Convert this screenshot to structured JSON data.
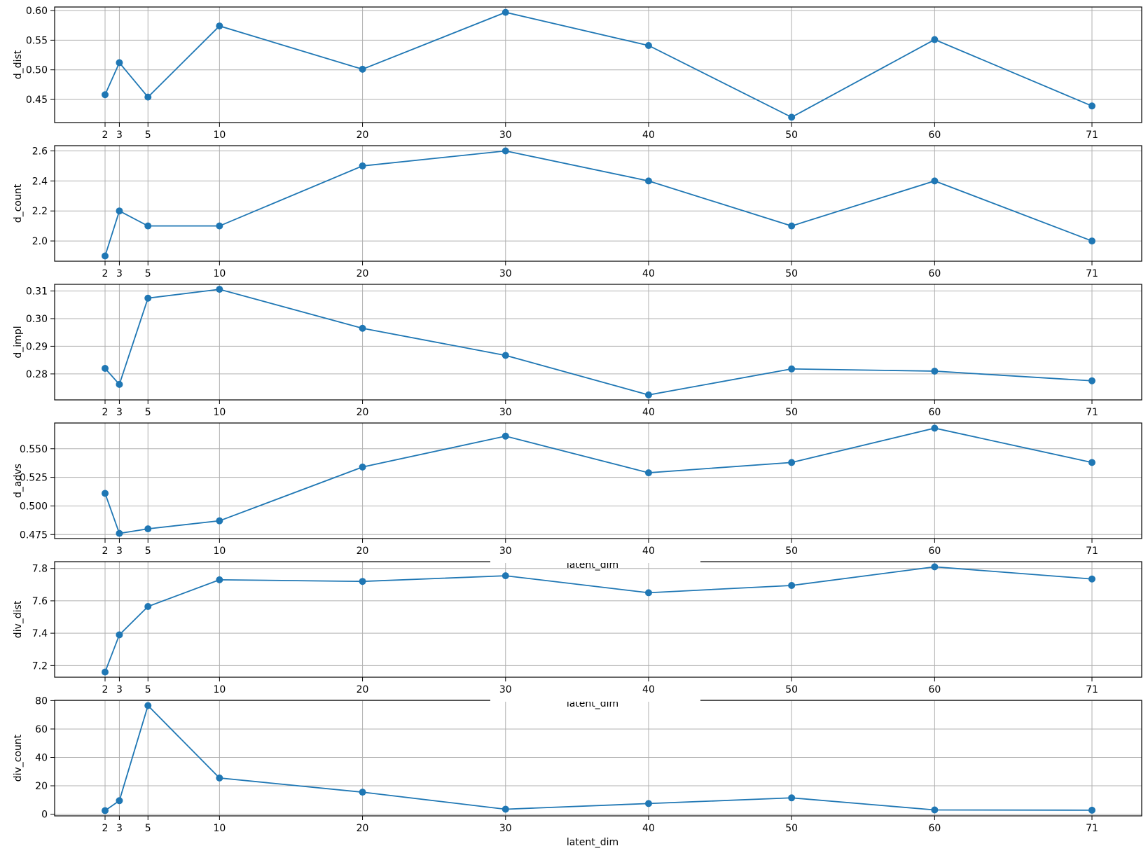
{
  "colors": {
    "series": "#1f77b4",
    "grid": "#b0b0b0"
  },
  "chart_data": [
    {
      "type": "line",
      "ylabel": "d_dist",
      "xlabel": "",
      "x": [
        2,
        3,
        5,
        10,
        20,
        30,
        40,
        50,
        60,
        71
      ],
      "values": [
        0.458,
        0.512,
        0.454,
        0.574,
        0.501,
        0.597,
        0.541,
        0.42,
        0.551,
        0.439
      ],
      "xticks": [
        2,
        3,
        5,
        10,
        20,
        30,
        40,
        50,
        60,
        71
      ],
      "yticks": [
        "0.45",
        "0.50",
        "0.55",
        "0.60"
      ],
      "ylim": [
        0.411,
        0.606
      ],
      "grid": true
    },
    {
      "type": "line",
      "ylabel": "d_count",
      "xlabel": "",
      "x": [
        2,
        3,
        5,
        10,
        20,
        30,
        40,
        50,
        60,
        71
      ],
      "values": [
        1.9,
        2.2,
        2.1,
        2.1,
        2.5,
        2.6,
        2.4,
        2.1,
        2.4,
        2.0
      ],
      "xticks": [
        2,
        3,
        5,
        10,
        20,
        30,
        40,
        50,
        60,
        71
      ],
      "yticks": [
        "2.0",
        "2.2",
        "2.4",
        "2.6"
      ],
      "ylim": [
        1.865,
        2.635
      ],
      "grid": true
    },
    {
      "type": "line",
      "ylabel": "d_impl",
      "xlabel": "",
      "x": [
        2,
        3,
        5,
        10,
        20,
        30,
        40,
        50,
        60,
        71
      ],
      "values": [
        0.282,
        0.2762,
        0.3074,
        0.3106,
        0.2965,
        0.2867,
        0.2724,
        0.2818,
        0.281,
        0.2775
      ],
      "xticks": [
        2,
        3,
        5,
        10,
        20,
        30,
        40,
        50,
        60,
        71
      ],
      "yticks": [
        "0.280",
        "0.290",
        "0.300",
        "0.310"
      ],
      "ytick_values": [
        0.28,
        0.29,
        0.3,
        0.31
      ],
      "ytick_text": [
        "0.28",
        "0.29",
        "0.30",
        "0.31"
      ],
      "ylim": [
        0.2706,
        0.3124
      ],
      "grid": true
    },
    {
      "type": "line",
      "ylabel": "d_advs",
      "xlabel": "latent_dim",
      "x": [
        2,
        3,
        5,
        10,
        20,
        30,
        40,
        50,
        60,
        71
      ],
      "values": [
        0.511,
        0.476,
        0.48,
        0.487,
        0.534,
        0.561,
        0.529,
        0.538,
        0.568,
        0.538
      ],
      "xticks": [
        2,
        3,
        5,
        10,
        20,
        30,
        40,
        50,
        60,
        71
      ],
      "yticks": [
        "0.475",
        "0.500",
        "0.525",
        "0.550"
      ],
      "ylim": [
        0.4715,
        0.5725
      ],
      "grid": true
    },
    {
      "type": "line",
      "ylabel": "div_dist",
      "xlabel": "latent_dim",
      "x": [
        2,
        3,
        5,
        10,
        20,
        30,
        40,
        50,
        60,
        71
      ],
      "values": [
        7.16,
        7.39,
        7.565,
        7.73,
        7.72,
        7.755,
        7.65,
        7.695,
        7.81,
        7.735
      ],
      "xticks": [
        2,
        3,
        5,
        10,
        20,
        30,
        40,
        50,
        60,
        71
      ],
      "yticks": [
        "7.2",
        "7.4",
        "7.6",
        "7.8"
      ],
      "ylim": [
        7.128,
        7.842
      ],
      "grid": true
    },
    {
      "type": "line",
      "ylabel": "div_count",
      "xlabel": "latent_dim",
      "x": [
        2,
        3,
        5,
        10,
        20,
        30,
        40,
        50,
        60,
        71
      ],
      "values": [
        2.5,
        9.5,
        76.5,
        25.5,
        15.5,
        3.5,
        7.5,
        11.5,
        3.0,
        2.8
      ],
      "xticks": [
        2,
        3,
        5,
        10,
        20,
        30,
        40,
        50,
        60,
        71
      ],
      "yticks": [
        "0",
        "20",
        "40",
        "60",
        "80"
      ],
      "ylim": [
        -1.2,
        80.2
      ],
      "grid": true
    }
  ]
}
